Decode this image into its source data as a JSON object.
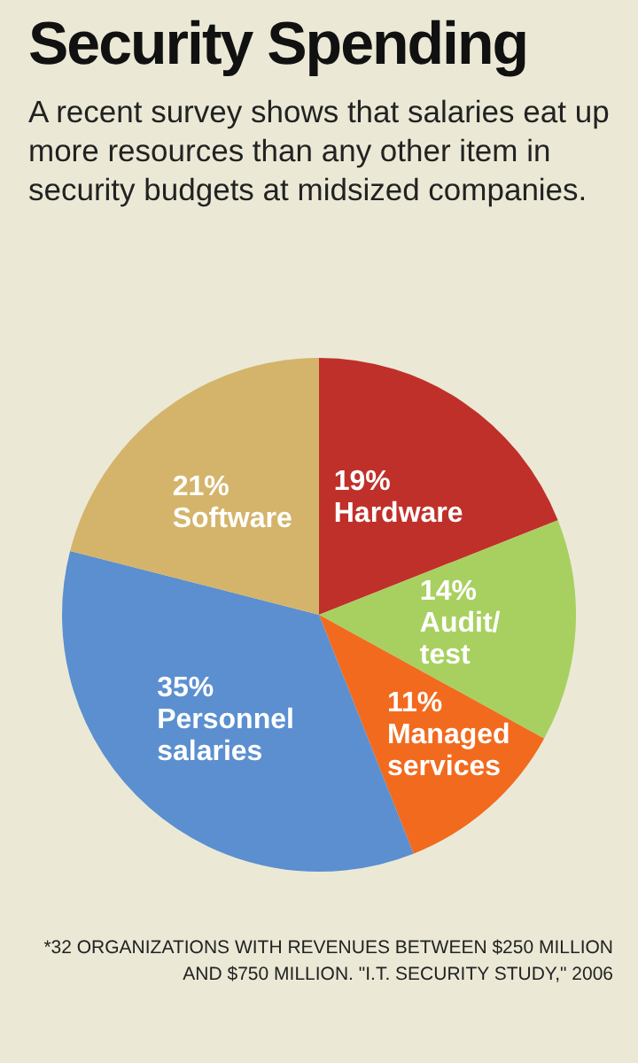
{
  "chart_data": {
    "type": "pie",
    "title": "Security Spending",
    "subtitle": "A recent survey shows that salaries eat up more resources than any other item in security budgets at midsized companies.",
    "categories": [
      "Hardware",
      "Audit/test",
      "Managed services",
      "Personnel salaries",
      "Software"
    ],
    "values": [
      19,
      14,
      11,
      35,
      21
    ],
    "value_labels": [
      "19%",
      "14%",
      "11%",
      "35%",
      "21%"
    ],
    "colors": [
      "#c0302a",
      "#a8d060",
      "#f26a1e",
      "#5b8fd0",
      "#d4b46a"
    ],
    "annotations": [
      "*32 ORGANIZATIONS WITH REVENUES BETWEEN $250 MILLION AND $750 MILLION. \"I.T. SECURITY STUDY,\" 2006"
    ]
  }
}
